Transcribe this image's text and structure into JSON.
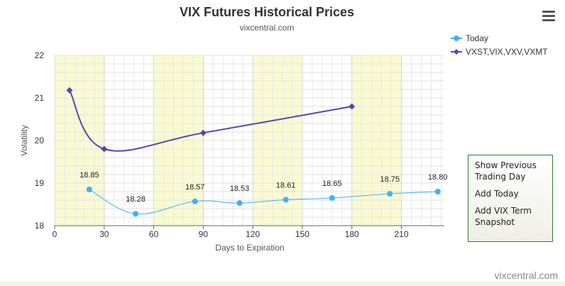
{
  "menu": {
    "icon": "hamburger-menu-icon"
  },
  "actions": [
    "Show Previous\nTrading Day",
    "Add Today",
    "Add VIX Term\nSnapshot"
  ],
  "credit": "vixcentral.com",
  "colors": {
    "today": "#3fb1f2",
    "terms": "#5546b0",
    "band": "#fafad2",
    "panel_border": "#2e7d32"
  },
  "chart_data": {
    "type": "line",
    "title": "VIX Futures Historical Prices",
    "subtitle": "vixcentral.com",
    "xlabel": "Days to Expiration",
    "ylabel": "Volatility",
    "xlim": [
      0,
      236
    ],
    "ylim": [
      18,
      22
    ],
    "x_ticks": [
      "0",
      "30",
      "60",
      "90",
      "120",
      "150",
      "180",
      "210"
    ],
    "y_ticks": [
      "18",
      "19",
      "20",
      "21",
      "22"
    ],
    "shaded_bands": [
      [
        0,
        30
      ],
      [
        60,
        90
      ],
      [
        120,
        150
      ],
      [
        180,
        210
      ]
    ],
    "grid": true,
    "legend_position": "top-right",
    "series": [
      {
        "name": "Today",
        "color": "#3fb1f2",
        "marker": "circle",
        "points": [
          [
            21,
            18.85
          ],
          [
            49,
            18.28
          ],
          [
            85,
            18.57
          ],
          [
            112,
            18.53
          ],
          [
            140,
            18.61
          ],
          [
            168,
            18.65
          ],
          [
            203,
            18.75
          ],
          [
            232,
            18.8
          ]
        ],
        "labels": [
          "18.85",
          "18.28",
          "18.57",
          "18.53",
          "18.61",
          "18.65",
          "18.75",
          "18.80"
        ]
      },
      {
        "name": "VXST,VIX,VXV,VXMT",
        "color": "#5546b0",
        "marker": "diamond",
        "points": [
          [
            9,
            21.18
          ],
          [
            30,
            19.8
          ],
          [
            90,
            20.18
          ],
          [
            180,
            20.8
          ]
        ],
        "labels": []
      }
    ]
  }
}
